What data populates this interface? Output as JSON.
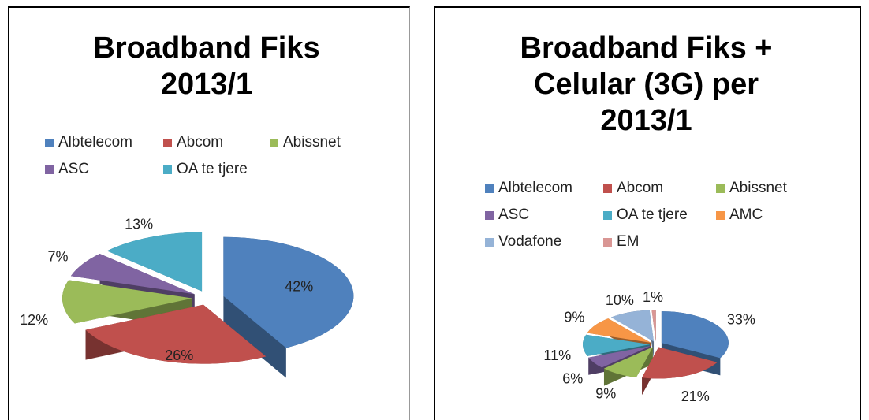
{
  "chart_data": [
    {
      "type": "pie",
      "title": "Broadband Fiks 2013/1",
      "categories": [
        "Albtelecom",
        "Abcom",
        "Abissnet",
        "ASC",
        "OA te tjere"
      ],
      "values": [
        42,
        26,
        12,
        7,
        13
      ],
      "value_labels": [
        "42%",
        "26%",
        "12%",
        "7%",
        "13%"
      ],
      "colors": [
        "#4f81bd",
        "#c0504d",
        "#9bbb59",
        "#8064a2",
        "#4bacc6"
      ]
    },
    {
      "type": "pie",
      "title": "Broadband Fiks + Celular (3G) per 2013/1",
      "categories": [
        "Albtelecom",
        "Abcom",
        "Abissnet",
        "ASC",
        "OA te tjere",
        "AMC",
        "Vodafone",
        "EM"
      ],
      "values": [
        33,
        21,
        9,
        6,
        11,
        9,
        10,
        1
      ],
      "value_labels": [
        "33%",
        "21%",
        "9%",
        "6%",
        "11%",
        "9%",
        "10%",
        "1%"
      ],
      "colors": [
        "#4f81bd",
        "#c0504d",
        "#9bbb59",
        "#8064a2",
        "#4bacc6",
        "#f79646",
        "#95b3d7",
        "#d99694"
      ]
    }
  ]
}
